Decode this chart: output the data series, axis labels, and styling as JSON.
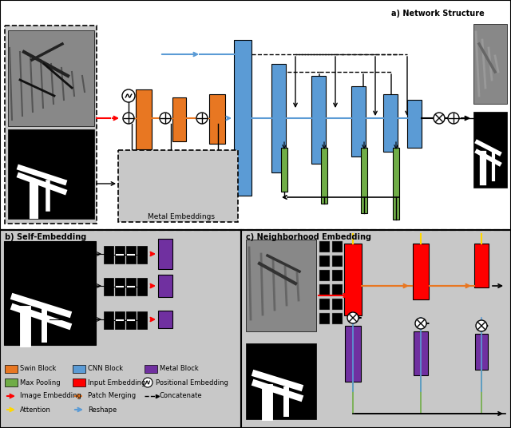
{
  "fig_width": 6.4,
  "fig_height": 5.36,
  "dpi": 100,
  "bg_color": "#d4d4d4",
  "panel_bg": "#c8c8c8",
  "white": "#ffffff",
  "colors": {
    "orange": "#E87722",
    "blue": "#5B9BD5",
    "purple": "#7030A0",
    "green": "#70AD47",
    "red": "#FF0000",
    "black": "#000000",
    "white": "#FFFFFF"
  },
  "section_a_title": "a) Network Structure",
  "section_b_title": "b) Self-Embedding",
  "section_c_title": "c) Neighborhood Embedding",
  "metal_embeddings_label": "Metal Embeddings",
  "legend": {
    "row1": [
      "Swin Block",
      "CNN Block",
      "Metal Block"
    ],
    "row2": [
      "Max Pooling",
      "Input Embedding",
      "Positional Embedding"
    ],
    "row3": [
      "Image Embedding",
      "Patch Merging",
      "Concatenate"
    ],
    "row4": [
      "Attention",
      "Reshape"
    ]
  }
}
